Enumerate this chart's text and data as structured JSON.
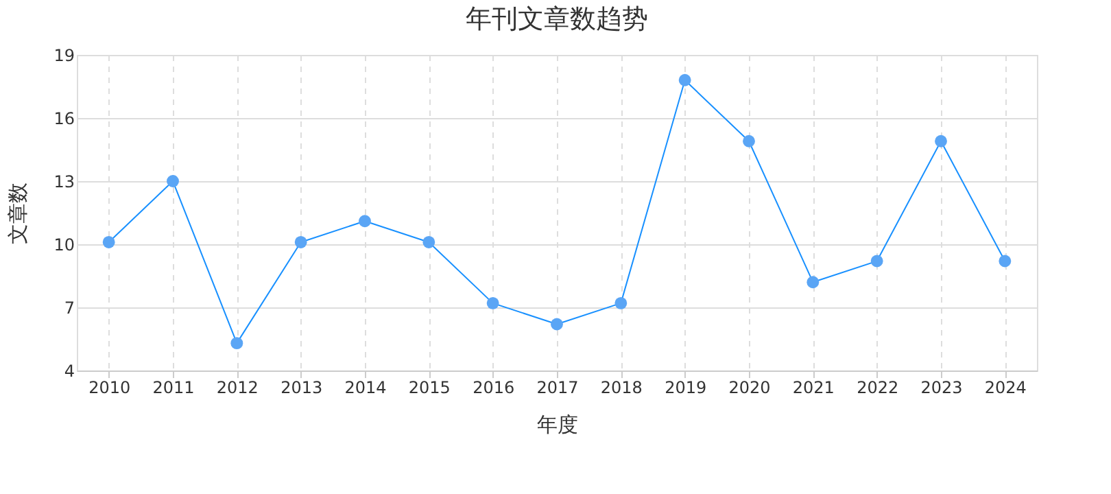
{
  "chart_data": {
    "type": "line",
    "title": "年刊文章数趋势",
    "xlabel": "年度",
    "ylabel": "文章数",
    "categories": [
      "2010",
      "2011",
      "2012",
      "2013",
      "2014",
      "2015",
      "2016",
      "2017",
      "2018",
      "2019",
      "2020",
      "2021",
      "2022",
      "2023",
      "2024"
    ],
    "series": [
      {
        "color": "#1890ff",
        "values": [
          10.1,
          13,
          5.3,
          10.1,
          11.1,
          10.1,
          7.2,
          6.2,
          7.2,
          17.8,
          14.9,
          8.2,
          9.2,
          14.9,
          9.2
        ]
      }
    ],
    "ylim": [
      4,
      19
    ],
    "yticks": [
      4,
      7,
      10,
      13,
      16,
      19
    ],
    "grid": true,
    "marker": "circle",
    "line_style": "solid"
  }
}
